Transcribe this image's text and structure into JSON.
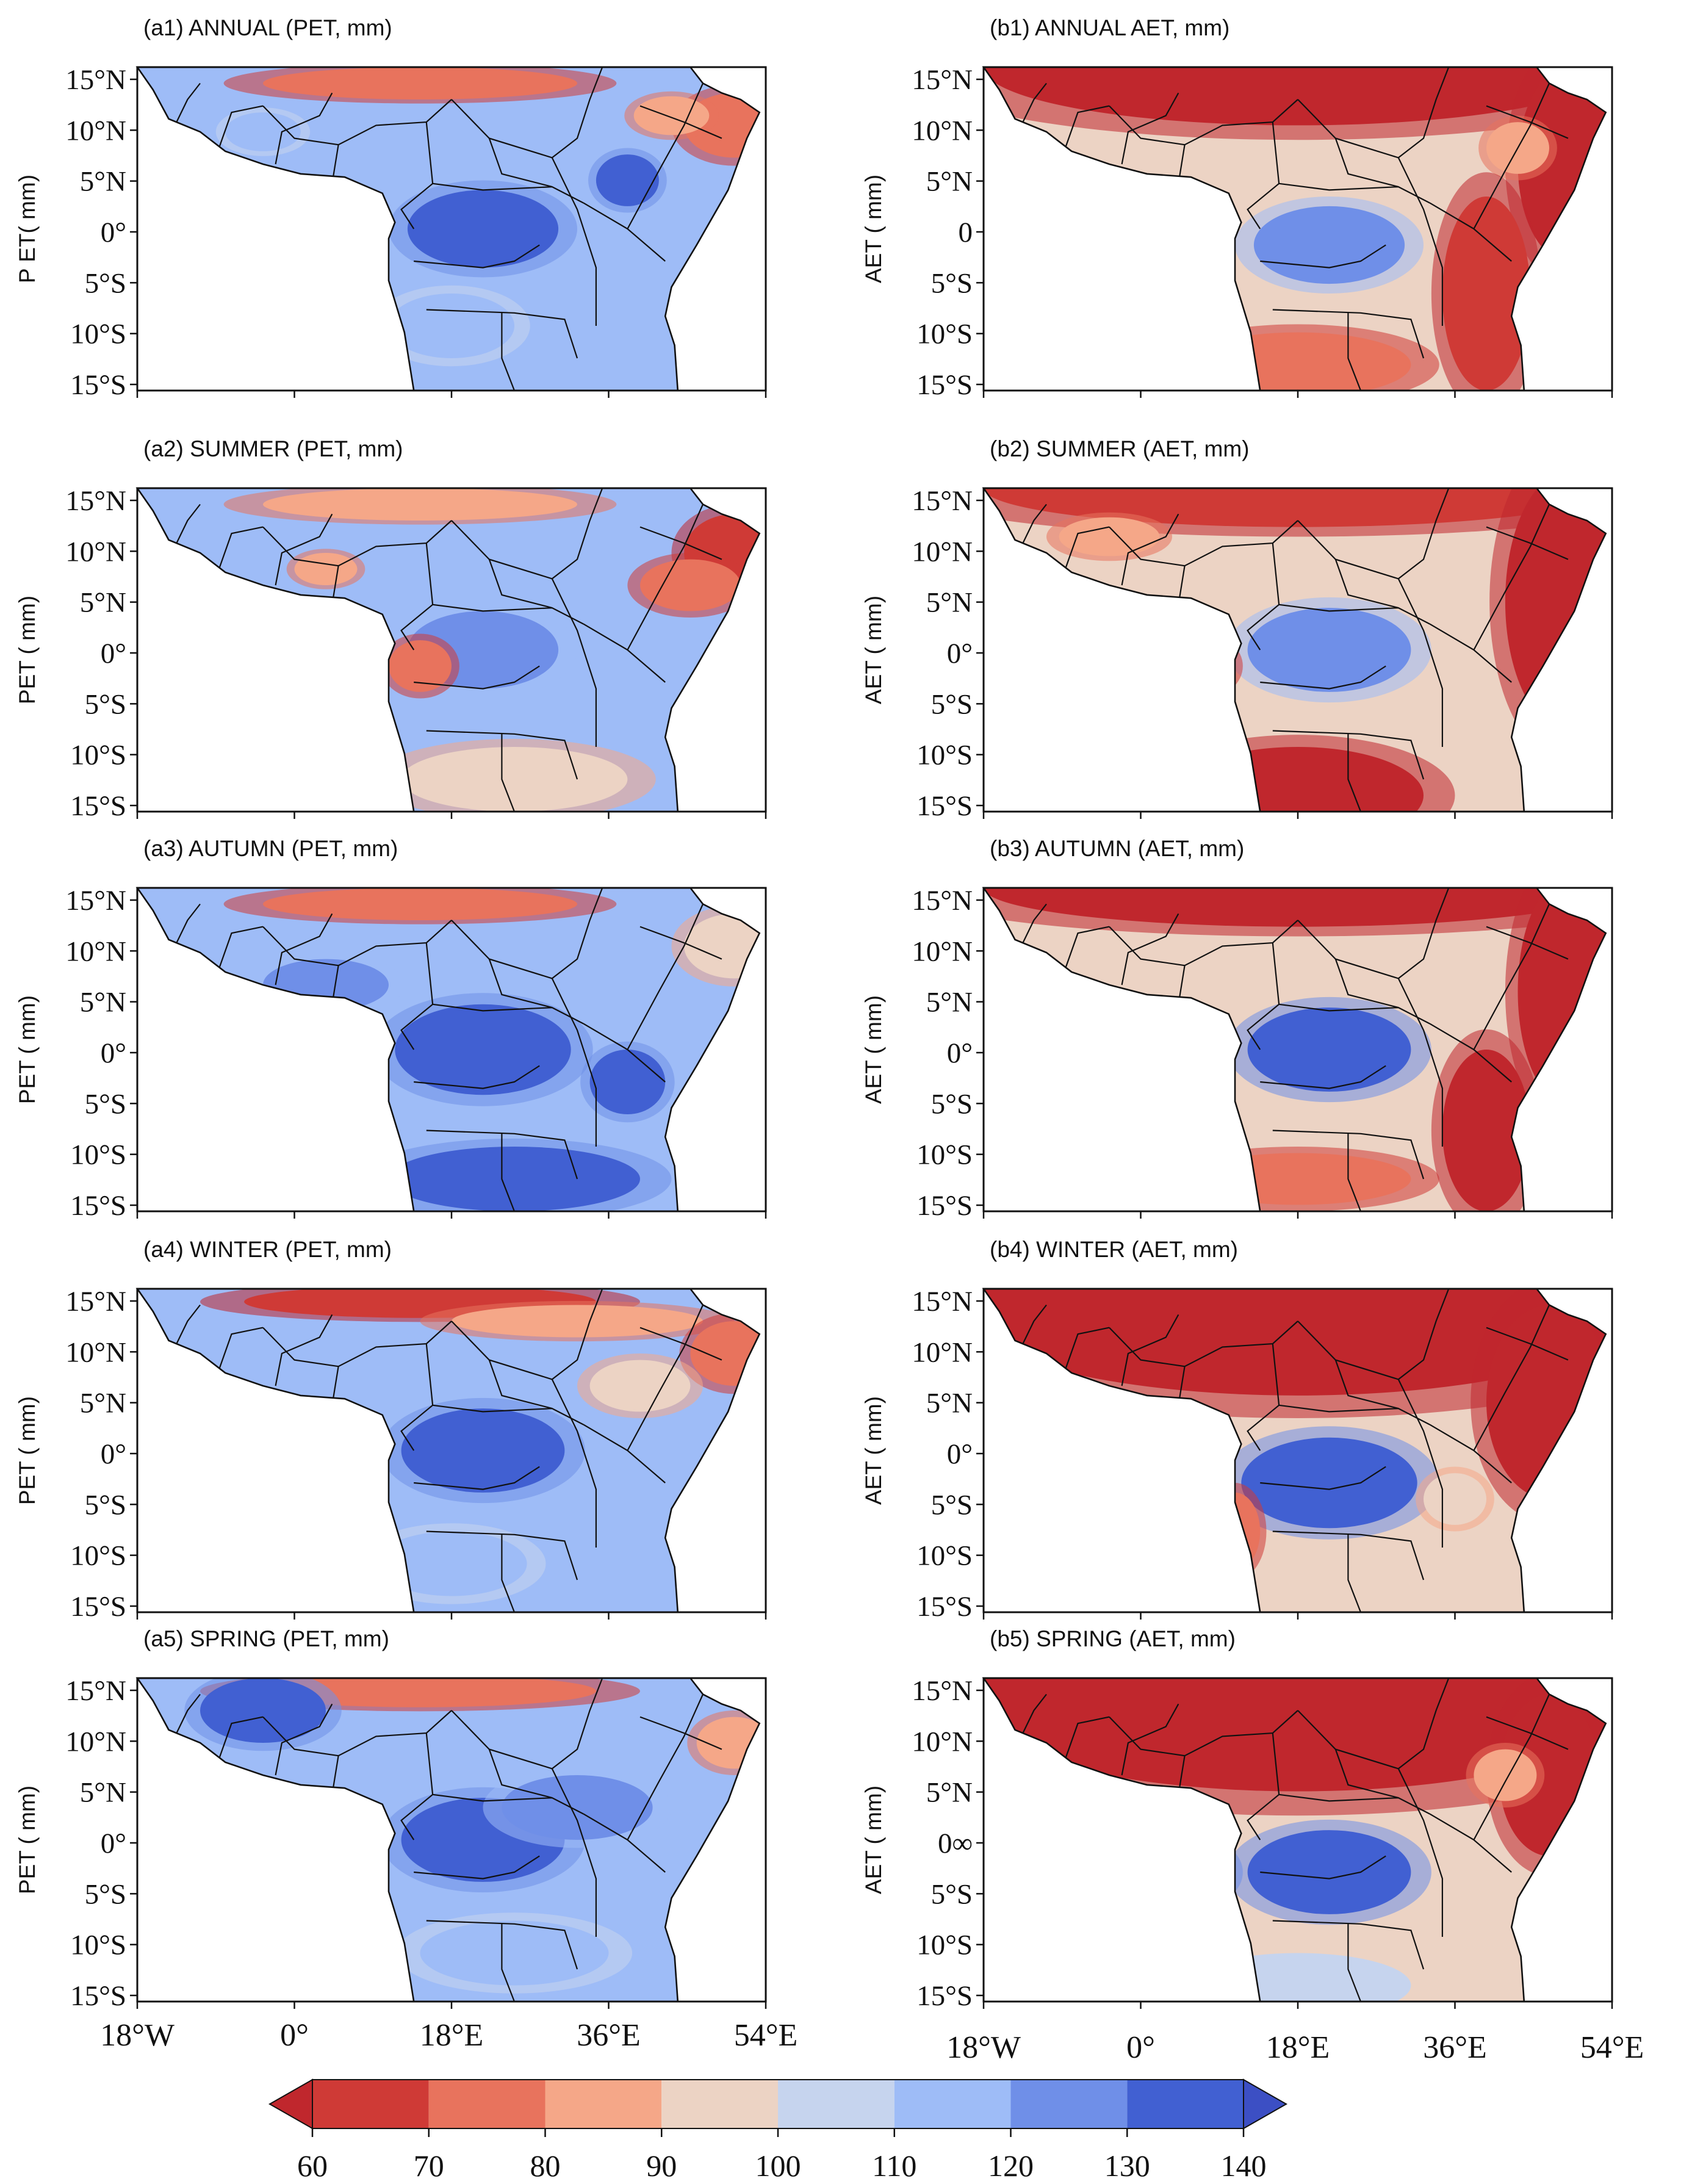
{
  "figure": {
    "description_free": true,
    "longitude_ticks": [
      "18°W",
      "0°",
      "18°E",
      "36°E",
      "54°E"
    ],
    "panels": [
      {
        "id": "a1",
        "title": "(a1) ANNUAL (PET, mm)",
        "ylabel": "P ET( mm)",
        "lat_ticks": [
          "15°N",
          "10°N",
          "5°N",
          "0°",
          "5°S",
          "10°S",
          "15°S"
        ],
        "variable": "PET",
        "season": "ANNUAL"
      },
      {
        "id": "b1",
        "title": "(b1) ANNUAL AET, mm)",
        "ylabel": "AET ( mm)",
        "lat_ticks": [
          "15°N",
          "10°N",
          "5°N",
          "0",
          "5°S",
          "10°S",
          "15°S"
        ],
        "variable": "AET",
        "season": "ANNUAL"
      },
      {
        "id": "a2",
        "title": "(a2) SUMMER (PET, mm)",
        "ylabel": "PET ( mm)",
        "lat_ticks": [
          "15°N",
          "10°N",
          "5°N",
          "0°",
          "5°S",
          "10°S",
          "15°S"
        ],
        "variable": "PET",
        "season": "SUMMER"
      },
      {
        "id": "b2",
        "title": "(b2) SUMMER (AET, mm)",
        "ylabel": "AET ( mm)",
        "lat_ticks": [
          "15°N",
          "10°N",
          "5°N",
          "0°",
          "5°S",
          "10°S",
          "15°S"
        ],
        "variable": "AET",
        "season": "SUMMER"
      },
      {
        "id": "a3",
        "title": "(a3) AUTUMN (PET, mm)",
        "ylabel": "PET ( mm)",
        "lat_ticks": [
          "15°N",
          "10°N",
          "5°N",
          "0°",
          "5°S",
          "10°S",
          "15°S"
        ],
        "variable": "PET",
        "season": "AUTUMN"
      },
      {
        "id": "b3",
        "title": "(b3) AUTUMN (AET, mm)",
        "ylabel": "AET ( mm)",
        "lat_ticks": [
          "15°N",
          "10°N",
          "5°N",
          "0°",
          "5°S",
          "10°S",
          "15°S"
        ],
        "variable": "AET",
        "season": "AUTUMN"
      },
      {
        "id": "a4",
        "title": "(a4) WINTER (PET, mm)",
        "ylabel": "PET ( mm)",
        "lat_ticks": [
          "15°N",
          "10°N",
          "5°N",
          "0°",
          "5°S",
          "10°S",
          "15°S"
        ],
        "variable": "PET",
        "season": "WINTER"
      },
      {
        "id": "b4",
        "title": "(b4) WINTER (AET, mm)",
        "ylabel": "AET ( mm)",
        "lat_ticks": [
          "15°N",
          "10°N",
          "5°N",
          "0°",
          "5°S",
          "10°S",
          "15°S"
        ],
        "variable": "AET",
        "season": "WINTER"
      },
      {
        "id": "a5",
        "title": "(a5) SPRING (PET, mm)",
        "ylabel": "PET ( mm)",
        "lat_ticks": [
          "15°N",
          "10°N",
          "5°N",
          "0°",
          "5°S",
          "10°S",
          "15°S"
        ],
        "variable": "PET",
        "season": "SPRING"
      },
      {
        "id": "b5",
        "title": "(b5) SPRING (AET, mm)",
        "ylabel": "AET ( mm)",
        "lat_ticks": [
          "15°N",
          "10°N",
          "5°N",
          "0∞",
          "5°S",
          "10°S",
          "15°S"
        ],
        "variable": "AET",
        "season": "SPRING"
      }
    ]
  },
  "colorbar": {
    "labels": [
      "60",
      "70",
      "80",
      "90",
      "100",
      "110",
      "120",
      "130",
      "140"
    ],
    "colors": [
      "#c0272d",
      "#cf3a36",
      "#e8735d",
      "#f5a788",
      "#ecd3c4",
      "#c6d4ee",
      "#9ebcf7",
      "#6f8fe8",
      "#4160d2",
      "#3c4fc4"
    ]
  }
}
